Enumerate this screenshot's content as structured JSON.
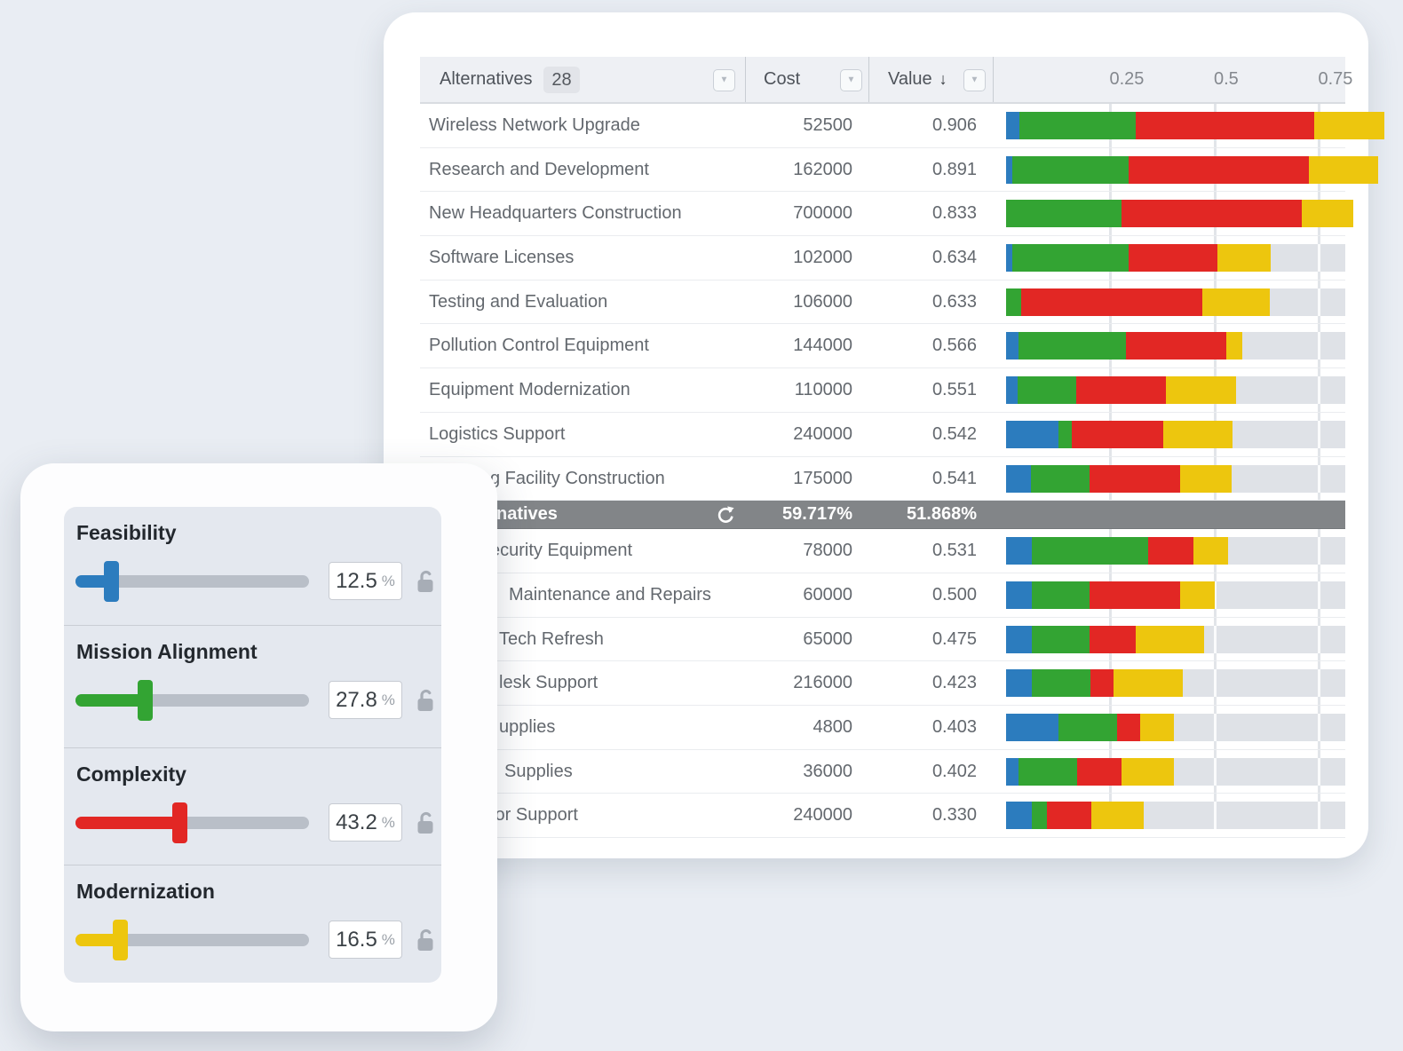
{
  "colors": {
    "feasibility": "#2c7cbe",
    "mission": "#33a433",
    "complexity": "#e22724",
    "modernization": "#edc60e",
    "track": "#dfe2e7",
    "summary_bg": "#828588"
  },
  "table": {
    "header": {
      "alternatives_label": "Alternatives",
      "alternatives_count": "28",
      "cost_label": "Cost",
      "value_label": "Value",
      "sort_arrow": "↓",
      "filter_icon": "▼"
    },
    "axis_ticks": [
      {
        "label": "0.25",
        "value": 0.25
      },
      {
        "label": "0.5",
        "value": 0.5
      },
      {
        "label": "0.75",
        "value": 0.75
      }
    ],
    "rows": [
      {
        "type": "alt",
        "label": "Wireless Network Upgrade",
        "label_indent": 0,
        "cost": "52500",
        "value": "0.906",
        "segments": {
          "feasibility": 0.031,
          "mission": 0.279,
          "complexity": 0.428,
          "modernization": 0.168
        }
      },
      {
        "type": "alt",
        "label": "Research and Development",
        "label_indent": 0,
        "cost": "162000",
        "value": "0.891",
        "segments": {
          "feasibility": 0.015,
          "mission": 0.279,
          "complexity": 0.432,
          "modernization": 0.165
        }
      },
      {
        "type": "alt",
        "label": "New Headquarters Construction",
        "label_indent": 0,
        "cost": "700000",
        "value": "0.833",
        "segments": {
          "feasibility": 0.0,
          "mission": 0.277,
          "complexity": 0.432,
          "modernization": 0.124
        }
      },
      {
        "type": "alt",
        "label": "Software Licenses",
        "label_indent": 0,
        "cost": "102000",
        "value": "0.634",
        "segments": {
          "feasibility": 0.015,
          "mission": 0.279,
          "complexity": 0.213,
          "modernization": 0.127
        }
      },
      {
        "type": "alt",
        "label": "Testing and Evaluation",
        "label_indent": 0,
        "cost": "106000",
        "value": "0.633",
        "segments": {
          "feasibility": 0.0,
          "mission": 0.036,
          "complexity": 0.434,
          "modernization": 0.163
        }
      },
      {
        "type": "alt",
        "label": "Pollution Control Equipment",
        "label_indent": 0,
        "cost": "144000",
        "value": "0.566",
        "segments": {
          "feasibility": 0.03,
          "mission": 0.257,
          "complexity": 0.24,
          "modernization": 0.039
        }
      },
      {
        "type": "alt",
        "label": "Equipment Modernization",
        "label_indent": 0,
        "cost": "110000",
        "value": "0.551",
        "segments": {
          "feasibility": 0.028,
          "mission": 0.14,
          "complexity": 0.215,
          "modernization": 0.168
        }
      },
      {
        "type": "alt",
        "label": "Logistics Support",
        "label_indent": 0,
        "cost": "240000",
        "value": "0.542",
        "segments": {
          "feasibility": 0.125,
          "mission": 0.033,
          "complexity": 0.219,
          "modernization": 0.165
        }
      },
      {
        "type": "alt",
        "label": "g Facility Construction",
        "label_indent": 69,
        "cost": "175000",
        "value": "0.541",
        "segments": {
          "feasibility": 0.06,
          "mission": 0.14,
          "complexity": 0.216,
          "modernization": 0.125
        }
      },
      {
        "type": "summary",
        "label": "natives",
        "label_indent": 76,
        "cost": "59.717%",
        "value": "51.868%"
      },
      {
        "type": "alt",
        "label": "ecurity Equipment",
        "label_indent": 69,
        "cost": "78000",
        "value": "0.531",
        "segments": {
          "feasibility": 0.062,
          "mission": 0.279,
          "complexity": 0.109,
          "modernization": 0.081
        }
      },
      {
        "type": "alt",
        "label": "Maintenance and Repairs",
        "label_indent": 90,
        "cost": "60000",
        "value": "0.500",
        "segments": {
          "feasibility": 0.062,
          "mission": 0.138,
          "complexity": 0.218,
          "modernization": 0.082
        }
      },
      {
        "type": "alt",
        "label": "Tech Refresh",
        "label_indent": 79,
        "cost": "65000",
        "value": "0.475",
        "segments": {
          "feasibility": 0.062,
          "mission": 0.138,
          "complexity": 0.11,
          "modernization": 0.165
        }
      },
      {
        "type": "alt",
        "label": "lesk Support",
        "label_indent": 79,
        "cost": "216000",
        "value": "0.423",
        "segments": {
          "feasibility": 0.062,
          "mission": 0.141,
          "complexity": 0.054,
          "modernization": 0.166
        }
      },
      {
        "type": "alt",
        "label": "upplies",
        "label_indent": 79,
        "cost": "4800",
        "value": "0.403",
        "segments": {
          "feasibility": 0.125,
          "mission": 0.142,
          "complexity": 0.055,
          "modernization": 0.081
        }
      },
      {
        "type": "alt",
        "label": "Supplies",
        "label_indent": 85,
        "cost": "36000",
        "value": "0.402",
        "segments": {
          "feasibility": 0.03,
          "mission": 0.14,
          "complexity": 0.106,
          "modernization": 0.126
        }
      },
      {
        "type": "alt",
        "label": "tor Support",
        "label_indent": 69,
        "cost": "240000",
        "value": "0.330",
        "segments": {
          "feasibility": 0.062,
          "mission": 0.036,
          "complexity": 0.107,
          "modernization": 0.125
        }
      }
    ]
  },
  "panel": {
    "sliders": [
      {
        "label": "Feasibility",
        "value": "12.5",
        "unit": "%",
        "fraction": 0.125,
        "color_key": "feasibility",
        "locked": false
      },
      {
        "label": "Mission Alignment",
        "value": "27.8",
        "unit": "%",
        "fraction": 0.278,
        "color_key": "mission",
        "locked": false
      },
      {
        "label": "Complexity",
        "value": "43.2",
        "unit": "%",
        "fraction": 0.432,
        "color_key": "complexity",
        "locked": false
      },
      {
        "label": "Modernization",
        "value": "16.5",
        "unit": "%",
        "fraction": 0.165,
        "color_key": "modernization",
        "locked": false
      }
    ]
  }
}
